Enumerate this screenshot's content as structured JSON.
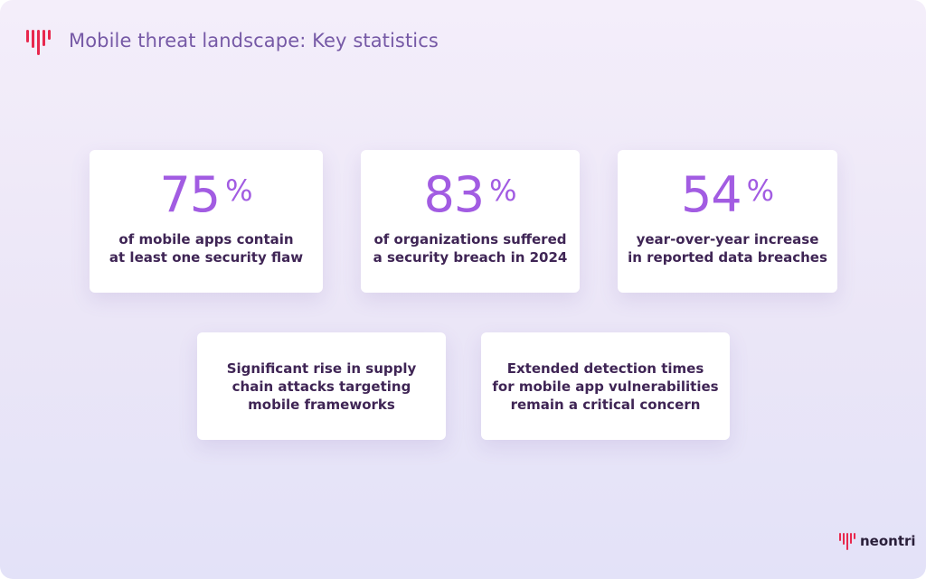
{
  "header": {
    "title": "Mobile threat landscape: Key statistics"
  },
  "stats": [
    {
      "value": 75,
      "unit": "%",
      "lines": [
        "of mobile apps contain",
        "at least one security flaw"
      ]
    },
    {
      "value": 83,
      "unit": "%",
      "lines": [
        "of organizations suffered",
        "a security breach in 2024"
      ]
    },
    {
      "value": 54,
      "unit": "%",
      "lines": [
        "year-over-year increase",
        "in reported data breaches"
      ]
    }
  ],
  "notes": [
    {
      "lines": [
        "Significant rise in supply",
        "chain attacks targeting",
        "mobile frameworks"
      ]
    },
    {
      "lines": [
        "Extended detection times",
        "for mobile app vulnerabilities",
        "remain a critical concern"
      ]
    }
  ],
  "footer": {
    "brand": "neontri"
  }
}
